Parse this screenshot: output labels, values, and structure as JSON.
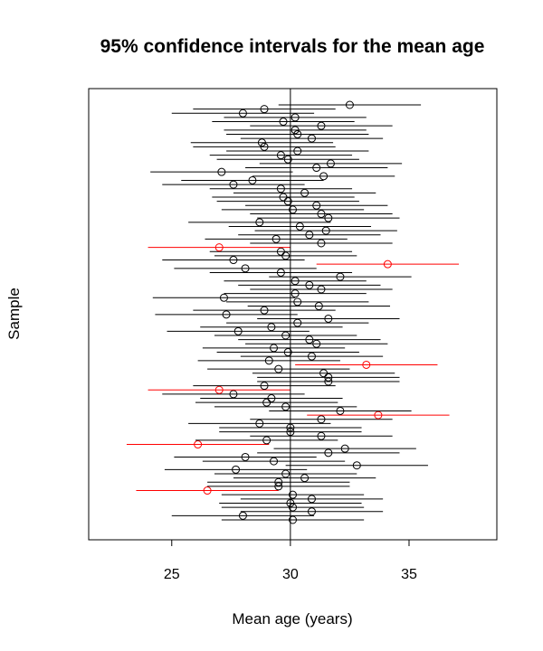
{
  "chart_data": {
    "type": "scatter",
    "title": "95% confidence intervals for the mean age",
    "xlabel": "Mean age (years)",
    "ylabel": "Sample",
    "xlim": [
      21.5,
      38.7
    ],
    "x_ticks": [
      25,
      30,
      35
    ],
    "reference_line": 30,
    "grid": false,
    "legend": "none",
    "colors": {
      "covers_true_mean": "#000000",
      "misses_true_mean": "#ff0000"
    },
    "intervals": [
      {
        "sample": 1,
        "mean": 30.1,
        "lower": 27.1,
        "upper": 33.1,
        "misses": false
      },
      {
        "sample": 2,
        "mean": 28.0,
        "lower": 25.0,
        "upper": 31.0,
        "misses": false
      },
      {
        "sample": 3,
        "mean": 30.9,
        "lower": 27.9,
        "upper": 33.9,
        "misses": false
      },
      {
        "sample": 4,
        "mean": 30.1,
        "lower": 27.1,
        "upper": 33.1,
        "misses": false
      },
      {
        "sample": 5,
        "mean": 30.0,
        "lower": 27.0,
        "upper": 33.0,
        "misses": false
      },
      {
        "sample": 6,
        "mean": 30.9,
        "lower": 27.9,
        "upper": 33.9,
        "misses": false
      },
      {
        "sample": 7,
        "mean": 30.1,
        "lower": 27.1,
        "upper": 33.1,
        "misses": false
      },
      {
        "sample": 8,
        "mean": 26.5,
        "lower": 23.5,
        "upper": 29.5,
        "misses": true
      },
      {
        "sample": 9,
        "mean": 29.5,
        "lower": 26.5,
        "upper": 32.5,
        "misses": false
      },
      {
        "sample": 10,
        "mean": 29.5,
        "lower": 26.5,
        "upper": 32.5,
        "misses": false
      },
      {
        "sample": 11,
        "mean": 30.6,
        "lower": 27.6,
        "upper": 33.6,
        "misses": false
      },
      {
        "sample": 12,
        "mean": 29.8,
        "lower": 26.8,
        "upper": 32.8,
        "misses": false
      },
      {
        "sample": 13,
        "mean": 27.7,
        "lower": 24.7,
        "upper": 30.7,
        "misses": false
      },
      {
        "sample": 14,
        "mean": 32.8,
        "lower": 29.8,
        "upper": 35.8,
        "misses": false
      },
      {
        "sample": 15,
        "mean": 29.3,
        "lower": 26.3,
        "upper": 32.3,
        "misses": false
      },
      {
        "sample": 16,
        "mean": 28.1,
        "lower": 25.1,
        "upper": 31.1,
        "misses": false
      },
      {
        "sample": 17,
        "mean": 31.6,
        "lower": 28.6,
        "upper": 34.6,
        "misses": false
      },
      {
        "sample": 18,
        "mean": 32.3,
        "lower": 29.3,
        "upper": 35.3,
        "misses": false
      },
      {
        "sample": 19,
        "mean": 26.1,
        "lower": 23.1,
        "upper": 29.1,
        "misses": true
      },
      {
        "sample": 20,
        "mean": 29.0,
        "lower": 26.0,
        "upper": 32.0,
        "misses": false
      },
      {
        "sample": 21,
        "mean": 31.3,
        "lower": 28.3,
        "upper": 34.3,
        "misses": false
      },
      {
        "sample": 22,
        "mean": 30.0,
        "lower": 27.0,
        "upper": 33.0,
        "misses": false
      },
      {
        "sample": 23,
        "mean": 30.0,
        "lower": 27.0,
        "upper": 33.0,
        "misses": false
      },
      {
        "sample": 24,
        "mean": 28.7,
        "lower": 25.7,
        "upper": 31.7,
        "misses": false
      },
      {
        "sample": 25,
        "mean": 31.3,
        "lower": 28.3,
        "upper": 34.3,
        "misses": false
      },
      {
        "sample": 26,
        "mean": 33.7,
        "lower": 30.7,
        "upper": 36.7,
        "misses": true
      },
      {
        "sample": 27,
        "mean": 32.1,
        "lower": 29.1,
        "upper": 35.1,
        "misses": false
      },
      {
        "sample": 28,
        "mean": 29.8,
        "lower": 26.8,
        "upper": 32.8,
        "misses": false
      },
      {
        "sample": 29,
        "mean": 29.0,
        "lower": 26.0,
        "upper": 32.0,
        "misses": false
      },
      {
        "sample": 30,
        "mean": 29.2,
        "lower": 26.2,
        "upper": 32.2,
        "misses": false
      },
      {
        "sample": 31,
        "mean": 27.6,
        "lower": 24.6,
        "upper": 30.6,
        "misses": false
      },
      {
        "sample": 32,
        "mean": 27.0,
        "lower": 24.0,
        "upper": 30.0,
        "misses": true
      },
      {
        "sample": 33,
        "mean": 28.9,
        "lower": 25.9,
        "upper": 31.9,
        "misses": false
      },
      {
        "sample": 34,
        "mean": 31.6,
        "lower": 28.6,
        "upper": 34.6,
        "misses": false
      },
      {
        "sample": 35,
        "mean": 31.6,
        "lower": 28.6,
        "upper": 34.6,
        "misses": false
      },
      {
        "sample": 36,
        "mean": 31.4,
        "lower": 28.4,
        "upper": 34.4,
        "misses": false
      },
      {
        "sample": 37,
        "mean": 29.5,
        "lower": 26.5,
        "upper": 32.5,
        "misses": false
      },
      {
        "sample": 38,
        "mean": 33.2,
        "lower": 30.2,
        "upper": 36.2,
        "misses": true
      },
      {
        "sample": 39,
        "mean": 29.1,
        "lower": 26.1,
        "upper": 32.1,
        "misses": false
      },
      {
        "sample": 40,
        "mean": 30.9,
        "lower": 27.9,
        "upper": 33.9,
        "misses": false
      },
      {
        "sample": 41,
        "mean": 29.9,
        "lower": 26.9,
        "upper": 32.9,
        "misses": false
      },
      {
        "sample": 42,
        "mean": 29.3,
        "lower": 26.3,
        "upper": 32.3,
        "misses": false
      },
      {
        "sample": 43,
        "mean": 31.1,
        "lower": 28.1,
        "upper": 34.1,
        "misses": false
      },
      {
        "sample": 44,
        "mean": 30.8,
        "lower": 27.8,
        "upper": 33.8,
        "misses": false
      },
      {
        "sample": 45,
        "mean": 29.8,
        "lower": 26.8,
        "upper": 32.8,
        "misses": false
      },
      {
        "sample": 46,
        "mean": 27.8,
        "lower": 24.8,
        "upper": 30.8,
        "misses": false
      },
      {
        "sample": 47,
        "mean": 29.2,
        "lower": 26.2,
        "upper": 32.2,
        "misses": false
      },
      {
        "sample": 48,
        "mean": 30.3,
        "lower": 27.3,
        "upper": 33.3,
        "misses": false
      },
      {
        "sample": 49,
        "mean": 31.6,
        "lower": 28.6,
        "upper": 34.6,
        "misses": false
      },
      {
        "sample": 50,
        "mean": 27.3,
        "lower": 24.3,
        "upper": 30.3,
        "misses": false
      },
      {
        "sample": 51,
        "mean": 28.9,
        "lower": 25.9,
        "upper": 31.9,
        "misses": false
      },
      {
        "sample": 52,
        "mean": 31.2,
        "lower": 28.2,
        "upper": 34.2,
        "misses": false
      },
      {
        "sample": 53,
        "mean": 30.3,
        "lower": 27.3,
        "upper": 33.3,
        "misses": false
      },
      {
        "sample": 54,
        "mean": 27.2,
        "lower": 24.2,
        "upper": 30.2,
        "misses": false
      },
      {
        "sample": 55,
        "mean": 30.2,
        "lower": 27.2,
        "upper": 33.2,
        "misses": false
      },
      {
        "sample": 56,
        "mean": 31.3,
        "lower": 28.3,
        "upper": 34.3,
        "misses": false
      },
      {
        "sample": 57,
        "mean": 30.8,
        "lower": 27.8,
        "upper": 33.8,
        "misses": false
      },
      {
        "sample": 58,
        "mean": 30.2,
        "lower": 27.2,
        "upper": 33.2,
        "misses": false
      },
      {
        "sample": 59,
        "mean": 32.1,
        "lower": 29.1,
        "upper": 35.1,
        "misses": false
      },
      {
        "sample": 60,
        "mean": 29.6,
        "lower": 26.6,
        "upper": 32.6,
        "misses": false
      },
      {
        "sample": 61,
        "mean": 28.1,
        "lower": 25.1,
        "upper": 31.1,
        "misses": false
      },
      {
        "sample": 62,
        "mean": 34.1,
        "lower": 31.1,
        "upper": 37.1,
        "misses": true
      },
      {
        "sample": 63,
        "mean": 27.6,
        "lower": 24.6,
        "upper": 30.6,
        "misses": false
      },
      {
        "sample": 64,
        "mean": 29.8,
        "lower": 26.8,
        "upper": 32.8,
        "misses": false
      },
      {
        "sample": 65,
        "mean": 29.6,
        "lower": 26.6,
        "upper": 32.6,
        "misses": false
      },
      {
        "sample": 66,
        "mean": 27.0,
        "lower": 24.0,
        "upper": 30.0,
        "misses": true
      },
      {
        "sample": 67,
        "mean": 31.3,
        "lower": 28.3,
        "upper": 34.3,
        "misses": false
      },
      {
        "sample": 68,
        "mean": 29.4,
        "lower": 26.4,
        "upper": 32.4,
        "misses": false
      },
      {
        "sample": 69,
        "mean": 30.8,
        "lower": 27.8,
        "upper": 33.8,
        "misses": false
      },
      {
        "sample": 70,
        "mean": 31.5,
        "lower": 28.5,
        "upper": 34.5,
        "misses": false
      },
      {
        "sample": 71,
        "mean": 30.4,
        "lower": 27.4,
        "upper": 33.4,
        "misses": false
      },
      {
        "sample": 72,
        "mean": 28.7,
        "lower": 25.7,
        "upper": 31.7,
        "misses": false
      },
      {
        "sample": 73,
        "mean": 31.6,
        "lower": 28.6,
        "upper": 34.6,
        "misses": false
      },
      {
        "sample": 74,
        "mean": 31.3,
        "lower": 28.3,
        "upper": 34.3,
        "misses": false
      },
      {
        "sample": 75,
        "mean": 30.1,
        "lower": 27.1,
        "upper": 33.1,
        "misses": false
      },
      {
        "sample": 76,
        "mean": 31.1,
        "lower": 28.1,
        "upper": 34.1,
        "misses": false
      },
      {
        "sample": 77,
        "mean": 29.9,
        "lower": 26.9,
        "upper": 32.9,
        "misses": false
      },
      {
        "sample": 78,
        "mean": 29.7,
        "lower": 26.7,
        "upper": 32.7,
        "misses": false
      },
      {
        "sample": 79,
        "mean": 30.6,
        "lower": 27.6,
        "upper": 33.6,
        "misses": false
      },
      {
        "sample": 80,
        "mean": 29.6,
        "lower": 26.6,
        "upper": 32.6,
        "misses": false
      },
      {
        "sample": 81,
        "mean": 27.6,
        "lower": 24.6,
        "upper": 30.6,
        "misses": false
      },
      {
        "sample": 82,
        "mean": 28.4,
        "lower": 25.4,
        "upper": 31.4,
        "misses": false
      },
      {
        "sample": 83,
        "mean": 31.4,
        "lower": 28.4,
        "upper": 34.4,
        "misses": false
      },
      {
        "sample": 84,
        "mean": 27.1,
        "lower": 24.1,
        "upper": 30.1,
        "misses": false
      },
      {
        "sample": 85,
        "mean": 31.1,
        "lower": 28.1,
        "upper": 34.1,
        "misses": false
      },
      {
        "sample": 86,
        "mean": 31.7,
        "lower": 28.7,
        "upper": 34.7,
        "misses": false
      },
      {
        "sample": 87,
        "mean": 29.9,
        "lower": 26.9,
        "upper": 32.9,
        "misses": false
      },
      {
        "sample": 88,
        "mean": 29.6,
        "lower": 26.6,
        "upper": 32.6,
        "misses": false
      },
      {
        "sample": 89,
        "mean": 30.3,
        "lower": 27.3,
        "upper": 33.3,
        "misses": false
      },
      {
        "sample": 90,
        "mean": 28.9,
        "lower": 25.9,
        "upper": 31.9,
        "misses": false
      },
      {
        "sample": 91,
        "mean": 28.8,
        "lower": 25.8,
        "upper": 31.8,
        "misses": false
      },
      {
        "sample": 92,
        "mean": 30.9,
        "lower": 27.9,
        "upper": 33.9,
        "misses": false
      },
      {
        "sample": 93,
        "mean": 30.3,
        "lower": 27.3,
        "upper": 33.3,
        "misses": false
      },
      {
        "sample": 94,
        "mean": 30.2,
        "lower": 27.2,
        "upper": 33.2,
        "misses": false
      },
      {
        "sample": 95,
        "mean": 31.3,
        "lower": 28.3,
        "upper": 34.3,
        "misses": false
      },
      {
        "sample": 96,
        "mean": 29.7,
        "lower": 26.7,
        "upper": 32.7,
        "misses": false
      },
      {
        "sample": 97,
        "mean": 30.2,
        "lower": 27.2,
        "upper": 33.2,
        "misses": false
      },
      {
        "sample": 98,
        "mean": 28.0,
        "lower": 25.0,
        "upper": 31.0,
        "misses": false
      },
      {
        "sample": 99,
        "mean": 28.9,
        "lower": 25.9,
        "upper": 31.9,
        "misses": false
      },
      {
        "sample": 100,
        "mean": 32.5,
        "lower": 29.5,
        "upper": 35.5,
        "misses": false
      }
    ]
  }
}
